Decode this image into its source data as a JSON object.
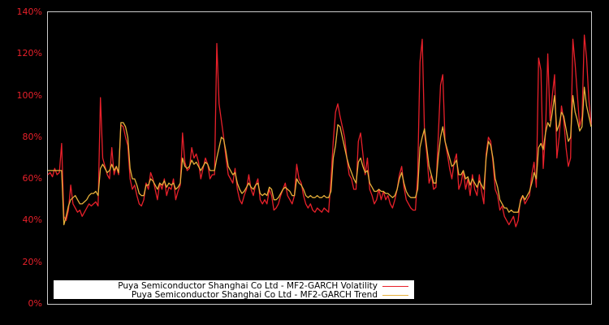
{
  "chart_data": {
    "type": "line",
    "title": "",
    "xlabel": "",
    "ylabel": "",
    "ylim": [
      0,
      140
    ],
    "y_ticks": [
      "0%",
      "20%",
      "40%",
      "60%",
      "80%",
      "100%",
      "120%",
      "140%"
    ],
    "y_tick_values": [
      0,
      20,
      40,
      60,
      80,
      100,
      120,
      140
    ],
    "grid": false,
    "legend_position": "lower left",
    "background": "#000000",
    "axis_color": "#cccccc",
    "tick_color": "#e8202a",
    "series": [
      {
        "name": "Puya Semiconductor Shanghai Co Ltd - MF2-GARCH Volatility",
        "color": "#e8202a",
        "values": [
          62,
          63,
          61,
          65,
          62,
          63,
          77,
          42,
          40,
          45,
          57,
          48,
          46,
          44,
          45,
          42,
          44,
          46,
          48,
          47,
          48,
          49,
          47,
          99,
          70,
          66,
          62,
          60,
          75,
          62,
          66,
          62,
          86,
          85,
          80,
          76,
          60,
          55,
          57,
          52,
          48,
          47,
          50,
          58,
          55,
          63,
          60,
          55,
          50,
          58,
          55,
          60,
          52,
          56,
          55,
          60,
          50,
          54,
          57,
          82,
          68,
          64,
          65,
          75,
          70,
          72,
          68,
          60,
          65,
          70,
          67,
          60,
          62,
          62,
          125,
          96,
          88,
          80,
          70,
          62,
          60,
          58,
          65,
          55,
          50,
          48,
          52,
          55,
          62,
          55,
          52,
          57,
          60,
          50,
          48,
          50,
          48,
          55,
          52,
          45,
          46,
          48,
          52,
          55,
          58,
          52,
          50,
          48,
          52,
          67,
          60,
          58,
          52,
          48,
          46,
          48,
          45,
          44,
          46,
          45,
          44,
          46,
          45,
          44,
          60,
          78,
          92,
          96,
          90,
          85,
          80,
          70,
          62,
          60,
          55,
          55,
          78,
          82,
          72,
          62,
          70,
          55,
          52,
          48,
          50,
          55,
          50,
          54,
          50,
          52,
          48,
          46,
          50,
          55,
          62,
          66,
          56,
          50,
          48,
          46,
          45,
          45,
          62,
          116,
          127,
          82,
          72,
          58,
          62,
          55,
          56,
          80,
          105,
          110,
          78,
          72,
          65,
          60,
          68,
          72,
          55,
          58,
          64,
          55,
          60,
          52,
          62,
          55,
          52,
          62,
          54,
          48,
          72,
          80,
          78,
          68,
          55,
          52,
          45,
          47,
          42,
          40,
          38,
          40,
          42,
          37,
          40,
          50,
          52,
          48,
          50,
          52,
          62,
          68,
          56,
          118,
          112,
          65,
          82,
          120,
          88,
          100,
          110,
          70,
          80,
          95,
          88,
          75,
          66,
          70,
          127,
          115,
          100,
          85,
          90,
          129,
          118,
          98,
          86
        ]
      },
      {
        "name": "Puya Semiconductor Shanghai Co Ltd - MF2-GARCH Trend",
        "color": "#e6b03a",
        "values": [
          64,
          64,
          64,
          64,
          64,
          64,
          64,
          38,
          42,
          47,
          50,
          51,
          52,
          50,
          48,
          48,
          49,
          50,
          52,
          53,
          53,
          54,
          52,
          65,
          67,
          65,
          63,
          64,
          67,
          64,
          66,
          63,
          87,
          87,
          85,
          80,
          65,
          60,
          60,
          57,
          53,
          52,
          52,
          57,
          57,
          60,
          59,
          57,
          55,
          58,
          57,
          59,
          56,
          58,
          57,
          58,
          55,
          56,
          58,
          70,
          66,
          65,
          66,
          69,
          67,
          68,
          66,
          64,
          66,
          68,
          67,
          64,
          64,
          64,
          70,
          75,
          80,
          79,
          73,
          66,
          64,
          62,
          63,
          58,
          55,
          53,
          54,
          56,
          58,
          56,
          55,
          57,
          58,
          53,
          52,
          53,
          52,
          56,
          55,
          50,
          50,
          51,
          53,
          55,
          56,
          55,
          54,
          52,
          52,
          60,
          58,
          57,
          55,
          52,
          51,
          52,
          51,
          51,
          52,
          51,
          51,
          52,
          51,
          51,
          54,
          70,
          76,
          86,
          85,
          80,
          75,
          70,
          66,
          63,
          60,
          58,
          68,
          70,
          66,
          63,
          64,
          58,
          56,
          54,
          54,
          55,
          54,
          54,
          53,
          53,
          52,
          51,
          52,
          55,
          60,
          63,
          58,
          54,
          52,
          51,
          51,
          51,
          55,
          75,
          80,
          84,
          75,
          66,
          62,
          58,
          58,
          70,
          80,
          85,
          78,
          74,
          70,
          66,
          67,
          69,
          62,
          62,
          64,
          60,
          61,
          57,
          60,
          58,
          56,
          59,
          57,
          55,
          70,
          78,
          76,
          70,
          60,
          56,
          50,
          48,
          46,
          46,
          44,
          45,
          44,
          44,
          44,
          49,
          52,
          50,
          52,
          54,
          58,
          63,
          60,
          75,
          77,
          74,
          82,
          87,
          85,
          92,
          100,
          83,
          86,
          92,
          90,
          84,
          78,
          80,
          100,
          92,
          88,
          83,
          85,
          104,
          95,
          90,
          85
        ]
      }
    ]
  },
  "legend": {
    "items": [
      {
        "label": "Puya Semiconductor Shanghai Co Ltd - MF2-GARCH Volatility",
        "color": "#e8202a"
      },
      {
        "label": "Puya Semiconductor Shanghai Co Ltd - MF2-GARCH Trend",
        "color": "#e6b03a"
      }
    ]
  }
}
